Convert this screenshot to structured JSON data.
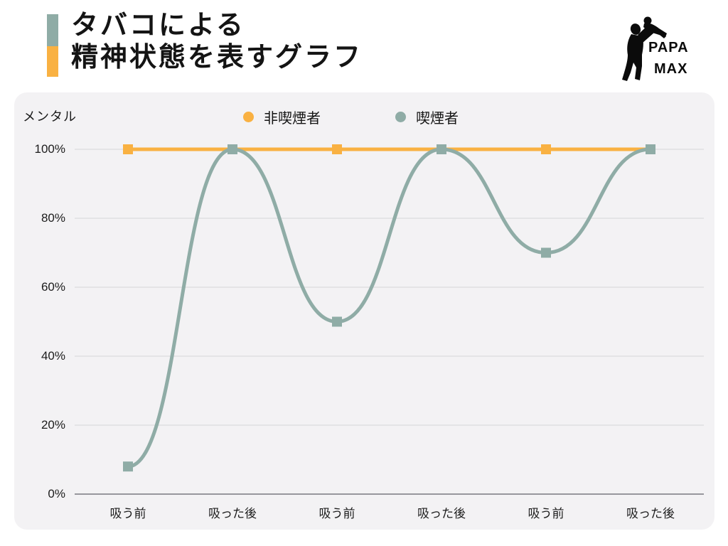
{
  "header": {
    "title_line1": "タバコによる",
    "title_line2": "精神状態を表すグラフ",
    "accent_bar_top_color": "#8FACA6",
    "accent_bar_bottom_color": "#F9B142"
  },
  "logo": {
    "icon": "father-lifting-child-silhouette",
    "text_line1": "PAPA",
    "text_line2": "MAX",
    "color": "#0B0B0B"
  },
  "chart_data": {
    "type": "line",
    "title": "タバコによる精神状態を表すグラフ",
    "ylabel": "メンタル",
    "xlabel": "",
    "categories": [
      "吸う前",
      "吸った後",
      "吸う前",
      "吸った後",
      "吸う前",
      "吸った後"
    ],
    "series": [
      {
        "name": "非喫煙者",
        "slug": "nonsmoker",
        "color": "#F9B142",
        "marker": "square",
        "smooth": false,
        "values": [
          100,
          100,
          100,
          100,
          100,
          100
        ]
      },
      {
        "name": "喫煙者",
        "slug": "smoker",
        "color": "#8FACA6",
        "marker": "square",
        "smooth": true,
        "values": [
          8,
          100,
          50,
          100,
          70,
          100
        ]
      }
    ],
    "yticks": [
      "100%",
      "80%",
      "60%",
      "40%",
      "20%",
      "0%"
    ],
    "ylim": [
      0,
      100
    ],
    "grid": true,
    "legend_position": "top-center",
    "plot_bg": "#F3F2F4",
    "gridline_color": "#DBDBDE",
    "axis_color": "#97979D"
  }
}
